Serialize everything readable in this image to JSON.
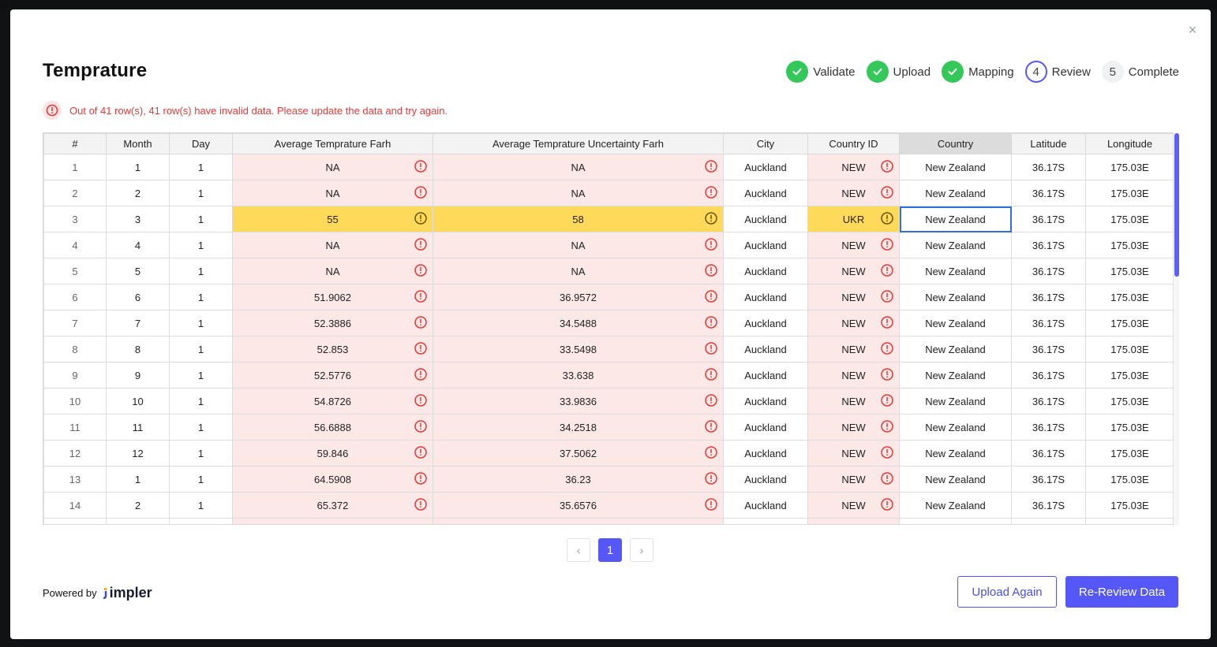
{
  "modal": {
    "title": "Temprature",
    "close_label": "×"
  },
  "steps": [
    {
      "label": "Validate",
      "state": "done",
      "number": ""
    },
    {
      "label": "Upload",
      "state": "done",
      "number": ""
    },
    {
      "label": "Mapping",
      "state": "done",
      "number": ""
    },
    {
      "label": "Review",
      "state": "active",
      "number": "4"
    },
    {
      "label": "Complete",
      "state": "pending",
      "number": "5"
    }
  ],
  "alert": {
    "text": "Out of 41 row(s), 41 row(s) have invalid data. Please update the data and try again.",
    "color": "#e53935"
  },
  "table": {
    "columns": [
      "#",
      "Month",
      "Day",
      "Average Temprature Farh",
      "Average Temprature Uncertainty Farh",
      "City",
      "Country ID",
      "Country",
      "Latitude",
      "Longitude"
    ],
    "rows": [
      {
        "n": "1",
        "month": "1",
        "day": "1",
        "avg": "NA",
        "unc": "NA",
        "city": "Auckland",
        "cid": "NEW",
        "country": "New Zealand",
        "lat": "36.17S",
        "lon": "175.03E",
        "state": "err"
      },
      {
        "n": "2",
        "month": "2",
        "day": "1",
        "avg": "NA",
        "unc": "NA",
        "city": "Auckland",
        "cid": "NEW",
        "country": "New Zealand",
        "lat": "36.17S",
        "lon": "175.03E",
        "state": "err"
      },
      {
        "n": "3",
        "month": "3",
        "day": "1",
        "avg": "55",
        "unc": "58",
        "city": "Auckland",
        "cid": "UKR",
        "country": "New Zealand",
        "lat": "36.17S",
        "lon": "175.03E",
        "state": "warn"
      },
      {
        "n": "4",
        "month": "4",
        "day": "1",
        "avg": "NA",
        "unc": "NA",
        "city": "Auckland",
        "cid": "NEW",
        "country": "New Zealand",
        "lat": "36.17S",
        "lon": "175.03E",
        "state": "err"
      },
      {
        "n": "5",
        "month": "5",
        "day": "1",
        "avg": "NA",
        "unc": "NA",
        "city": "Auckland",
        "cid": "NEW",
        "country": "New Zealand",
        "lat": "36.17S",
        "lon": "175.03E",
        "state": "err"
      },
      {
        "n": "6",
        "month": "6",
        "day": "1",
        "avg": "51.9062",
        "unc": "36.9572",
        "city": "Auckland",
        "cid": "NEW",
        "country": "New Zealand",
        "lat": "36.17S",
        "lon": "175.03E",
        "state": "err"
      },
      {
        "n": "7",
        "month": "7",
        "day": "1",
        "avg": "52.3886",
        "unc": "34.5488",
        "city": "Auckland",
        "cid": "NEW",
        "country": "New Zealand",
        "lat": "36.17S",
        "lon": "175.03E",
        "state": "err"
      },
      {
        "n": "8",
        "month": "8",
        "day": "1",
        "avg": "52.853",
        "unc": "33.5498",
        "city": "Auckland",
        "cid": "NEW",
        "country": "New Zealand",
        "lat": "36.17S",
        "lon": "175.03E",
        "state": "err"
      },
      {
        "n": "9",
        "month": "9",
        "day": "1",
        "avg": "52.5776",
        "unc": "33.638",
        "city": "Auckland",
        "cid": "NEW",
        "country": "New Zealand",
        "lat": "36.17S",
        "lon": "175.03E",
        "state": "err"
      },
      {
        "n": "10",
        "month": "10",
        "day": "1",
        "avg": "54.8726",
        "unc": "33.9836",
        "city": "Auckland",
        "cid": "NEW",
        "country": "New Zealand",
        "lat": "36.17S",
        "lon": "175.03E",
        "state": "err"
      },
      {
        "n": "11",
        "month": "11",
        "day": "1",
        "avg": "56.6888",
        "unc": "34.2518",
        "city": "Auckland",
        "cid": "NEW",
        "country": "New Zealand",
        "lat": "36.17S",
        "lon": "175.03E",
        "state": "err"
      },
      {
        "n": "12",
        "month": "12",
        "day": "1",
        "avg": "59.846",
        "unc": "37.5062",
        "city": "Auckland",
        "cid": "NEW",
        "country": "New Zealand",
        "lat": "36.17S",
        "lon": "175.03E",
        "state": "err"
      },
      {
        "n": "13",
        "month": "1",
        "day": "1",
        "avg": "64.5908",
        "unc": "36.23",
        "city": "Auckland",
        "cid": "NEW",
        "country": "New Zealand",
        "lat": "36.17S",
        "lon": "175.03E",
        "state": "err"
      },
      {
        "n": "14",
        "month": "2",
        "day": "1",
        "avg": "65.372",
        "unc": "35.6576",
        "city": "Auckland",
        "cid": "NEW",
        "country": "New Zealand",
        "lat": "36.17S",
        "lon": "175.03E",
        "state": "err"
      },
      {
        "n": "",
        "month": "",
        "day": "",
        "avg": "",
        "unc": "",
        "city": "",
        "cid": "",
        "country": "",
        "lat": "",
        "lon": "",
        "state": "err"
      }
    ]
  },
  "pagination": {
    "prev": "‹",
    "current": "1",
    "next": "›"
  },
  "footer": {
    "powered_by": "Powered by",
    "brand": "impler",
    "upload_again": "Upload Again",
    "re_review": "Re-Review Data"
  },
  "colors": {
    "accent": "#5557f6",
    "success": "#34c759",
    "error_bg": "#fde8e8",
    "warn_bg": "#ffd95a"
  }
}
